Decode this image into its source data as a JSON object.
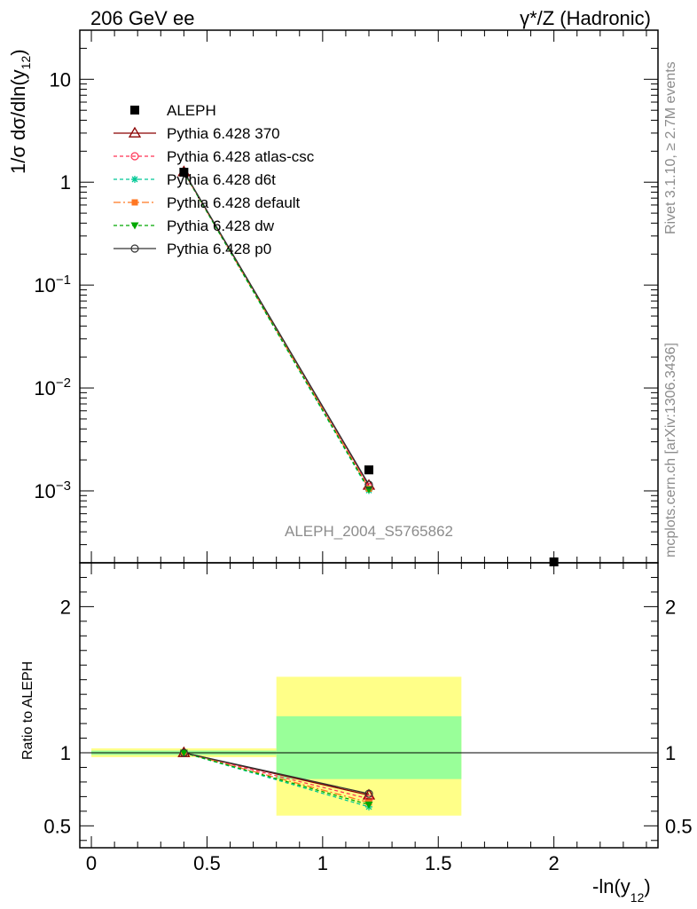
{
  "header": {
    "left": "206 GeV ee",
    "right_prefix": "γ*/Z (Hadronic)"
  },
  "side": {
    "rivet": "Rivet 3.1.10, ≥ 2.7M events",
    "mcplots": "mcplots.cern.ch [arXiv:1306.3436]"
  },
  "watermark": "ALEPH_2004_S5765862",
  "colors": {
    "data": "#000000",
    "p370": "#8b0000",
    "atlas": "#ff3355",
    "d6t": "#00c896",
    "default": "#ff7722",
    "dw": "#00a800",
    "p0": "#333333",
    "band_outer": "#ffff88",
    "band_inner": "#99ff99"
  },
  "chart_data": [
    {
      "type": "line",
      "panel": "main",
      "title": "206 GeV ee",
      "ylabel": "1/σ dσ/dln(y12)",
      "yscale": "log",
      "xlim": [
        -0.05,
        2.45
      ],
      "ylim": [
        0.0002,
        30
      ],
      "ytick_labels": [
        "10",
        "1",
        "10−1",
        "10−2",
        "10−3"
      ],
      "ytick_values": [
        10,
        1,
        0.1,
        0.01,
        0.001
      ],
      "data": {
        "name": "ALEPH",
        "x": [
          0.4,
          1.2,
          2.0
        ],
        "y": [
          1.25,
          0.0016,
          0.00019
        ]
      },
      "series": [
        {
          "name": "Pythia 6.428 370",
          "key": "p370",
          "x": [
            0.4,
            1.2
          ],
          "y": [
            1.26,
            0.00113
          ]
        },
        {
          "name": "Pythia 6.428 atlas-csc",
          "key": "atlas",
          "x": [
            0.4,
            1.2
          ],
          "y": [
            1.25,
            0.00109
          ]
        },
        {
          "name": "Pythia 6.428 d6t",
          "key": "d6t",
          "x": [
            0.4,
            1.2
          ],
          "y": [
            1.25,
            0.00101
          ]
        },
        {
          "name": "Pythia 6.428 default",
          "key": "default",
          "x": [
            0.4,
            1.2
          ],
          "y": [
            1.25,
            0.00105
          ]
        },
        {
          "name": "Pythia 6.428 dw",
          "key": "dw",
          "x": [
            0.4,
            1.2
          ],
          "y": [
            1.25,
            0.00103
          ]
        },
        {
          "name": "Pythia 6.428 p0",
          "key": "p0",
          "x": [
            0.4,
            1.2
          ],
          "y": [
            1.27,
            0.00115
          ]
        }
      ]
    },
    {
      "type": "line",
      "panel": "ratio",
      "ylabel": "Ratio to ALEPH",
      "xlabel": "-ln(y12)",
      "xlim": [
        -0.05,
        2.45
      ],
      "ylim": [
        0.35,
        2.3
      ],
      "ytick_labels": [
        "2",
        "1",
        "0.5"
      ],
      "ytick_values": [
        2,
        1,
        0.5
      ],
      "xtick_labels": [
        "0",
        "0.5",
        "1",
        "1.5",
        "2"
      ],
      "xtick_values": [
        0,
        0.5,
        1,
        1.5,
        2
      ],
      "bands": [
        {
          "x0": 0.0,
          "x1": 0.8,
          "outer": [
            0.97,
            1.03
          ],
          "inner": [
            0.985,
            1.015
          ]
        },
        {
          "x0": 0.8,
          "x1": 1.6,
          "outer": [
            0.57,
            1.52
          ],
          "inner": [
            0.82,
            1.25
          ]
        }
      ],
      "series": [
        {
          "name": "Pythia 6.428 370",
          "key": "p370",
          "x": [
            0.4,
            1.2
          ],
          "y": [
            1.0,
            0.71
          ]
        },
        {
          "name": "Pythia 6.428 atlas-csc",
          "key": "atlas",
          "x": [
            0.4,
            1.2
          ],
          "y": [
            1.0,
            0.685
          ]
        },
        {
          "name": "Pythia 6.428 d6t",
          "key": "d6t",
          "x": [
            0.4,
            1.2
          ],
          "y": [
            1.0,
            0.63
          ]
        },
        {
          "name": "Pythia 6.428 default",
          "key": "default",
          "x": [
            0.4,
            1.2
          ],
          "y": [
            1.0,
            0.66
          ]
        },
        {
          "name": "Pythia 6.428 dw",
          "key": "dw",
          "x": [
            0.4,
            1.2
          ],
          "y": [
            1.0,
            0.645
          ]
        },
        {
          "name": "Pythia 6.428 p0",
          "key": "p0",
          "x": [
            0.4,
            1.2
          ],
          "y": [
            1.0,
            0.72
          ]
        }
      ]
    }
  ],
  "legend": [
    {
      "label": "ALEPH",
      "key": "data",
      "marker": "square",
      "dash": "none"
    },
    {
      "label": "Pythia 6.428 370",
      "key": "p370",
      "marker": "triangle",
      "dash": "solid"
    },
    {
      "label": "Pythia 6.428 atlas-csc",
      "key": "atlas",
      "marker": "circle",
      "dash": "4,3"
    },
    {
      "label": "Pythia 6.428 d6t",
      "key": "d6t",
      "marker": "star",
      "dash": "4,3"
    },
    {
      "label": "Pythia 6.428 default",
      "key": "default",
      "marker": "fsquare",
      "dash": "8,3,2,3"
    },
    {
      "label": "Pythia 6.428 dw",
      "key": "dw",
      "marker": "ftriangle-down",
      "dash": "4,3"
    },
    {
      "label": "Pythia 6.428 p0",
      "key": "p0",
      "marker": "circle",
      "dash": "solid"
    }
  ]
}
